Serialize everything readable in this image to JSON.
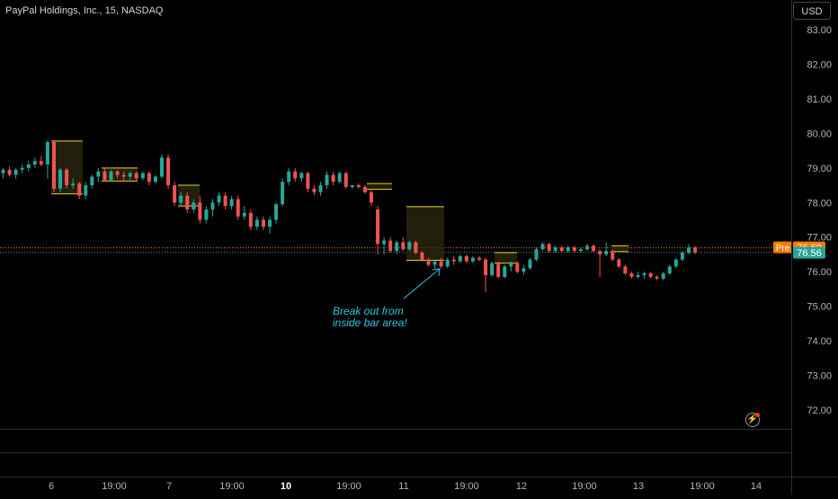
{
  "header": {
    "symbol_title": "PayPal Holdings, Inc., 15, NASDAQ",
    "currency_button": "USD"
  },
  "price_badges": {
    "pre_label": "Pre",
    "pre_value": "76.69",
    "last_value": "76.56"
  },
  "annotation": {
    "line1": "Break out from",
    "line2": "inside bar area!"
  },
  "colors": {
    "up": "#26a69a",
    "down": "#ef5350",
    "box_border": "#f0d020",
    "box_fill": "#2d2a10",
    "annotation": "#2ec5e0",
    "pre_badge": "#f57c00",
    "last_badge": "#26a69a",
    "grid_text": "#b2b5be"
  },
  "chart_data": {
    "type": "candlestick",
    "y_axis": {
      "ticks": [
        "83.00",
        "82.00",
        "81.00",
        "80.00",
        "79.00",
        "78.00",
        "77.00",
        "76.00",
        "75.00",
        "74.00",
        "73.00",
        "72.00"
      ],
      "ylim": [
        71.5,
        83.5
      ],
      "side": "right"
    },
    "x_axis": {
      "ticks": [
        {
          "label": "6",
          "i": 0,
          "bold": false
        },
        {
          "label": "19:00",
          "i": 1,
          "bold": false
        },
        {
          "label": "7",
          "i": 2,
          "bold": false
        },
        {
          "label": "19:00",
          "i": 3,
          "bold": false
        },
        {
          "label": "10",
          "i": 4,
          "bold": true
        },
        {
          "label": "19:00",
          "i": 5,
          "bold": false
        },
        {
          "label": "11",
          "i": 6,
          "bold": false
        },
        {
          "label": "19:00",
          "i": 7,
          "bold": false
        },
        {
          "label": "12",
          "i": 8,
          "bold": false
        },
        {
          "label": "19:00",
          "i": 9,
          "bold": false
        },
        {
          "label": "13",
          "i": 10,
          "bold": false
        },
        {
          "label": "19:00",
          "i": 11,
          "bold": false
        },
        {
          "label": "14",
          "i": 12,
          "bold": false
        }
      ]
    },
    "reference_lines": [
      {
        "name": "pre-market",
        "value": 76.69
      },
      {
        "name": "last",
        "value": 76.56
      }
    ],
    "inside_bar_boxes": [
      {
        "top": 79.78,
        "bottom": 78.25
      },
      {
        "top": 79.0,
        "bottom": 78.62
      },
      {
        "top": 78.5,
        "bottom": 77.9
      },
      {
        "top": 78.55,
        "bottom": 78.38
      },
      {
        "top": 77.88,
        "bottom": 76.33
      },
      {
        "top": 76.55,
        "bottom": 76.25
      },
      {
        "top": 76.75,
        "bottom": 76.58
      }
    ],
    "ohlc": [
      [
        78.85,
        79.0,
        78.7,
        78.95
      ],
      [
        78.95,
        79.05,
        78.75,
        78.8
      ],
      [
        78.8,
        79.0,
        78.7,
        78.95
      ],
      [
        78.95,
        79.1,
        78.85,
        79.0
      ],
      [
        79.0,
        79.2,
        78.9,
        79.1
      ],
      [
        79.1,
        79.3,
        79.0,
        79.2
      ],
      [
        79.2,
        79.35,
        79.05,
        79.1
      ],
      [
        79.1,
        79.8,
        78.7,
        79.75
      ],
      [
        79.75,
        79.8,
        78.3,
        78.4
      ],
      [
        78.4,
        79.0,
        78.3,
        78.95
      ],
      [
        78.95,
        79.0,
        78.4,
        78.5
      ],
      [
        78.5,
        78.7,
        78.4,
        78.55
      ],
      [
        78.55,
        78.6,
        78.1,
        78.2
      ],
      [
        78.2,
        78.6,
        78.1,
        78.5
      ],
      [
        78.5,
        78.8,
        78.4,
        78.75
      ],
      [
        78.75,
        79.0,
        78.6,
        78.9
      ],
      [
        78.9,
        79.0,
        78.6,
        78.65
      ],
      [
        78.65,
        78.95,
        78.6,
        78.9
      ],
      [
        78.9,
        78.95,
        78.7,
        78.8
      ],
      [
        78.8,
        78.9,
        78.6,
        78.75
      ],
      [
        78.75,
        78.9,
        78.65,
        78.85
      ],
      [
        78.85,
        78.9,
        78.6,
        78.7
      ],
      [
        78.7,
        78.9,
        78.65,
        78.85
      ],
      [
        78.85,
        78.9,
        78.5,
        78.6
      ],
      [
        78.6,
        78.8,
        78.55,
        78.75
      ],
      [
        78.75,
        79.4,
        78.7,
        79.3
      ],
      [
        79.3,
        79.4,
        78.4,
        78.5
      ],
      [
        78.5,
        78.6,
        77.9,
        78.0
      ],
      [
        78.0,
        78.3,
        77.9,
        78.2
      ],
      [
        78.2,
        78.3,
        77.7,
        77.8
      ],
      [
        77.8,
        78.1,
        77.7,
        78.0
      ],
      [
        78.0,
        78.2,
        77.4,
        77.5
      ],
      [
        77.5,
        77.9,
        77.4,
        77.8
      ],
      [
        77.8,
        78.1,
        77.6,
        78.0
      ],
      [
        78.0,
        78.3,
        77.9,
        78.2
      ],
      [
        78.2,
        78.3,
        77.8,
        77.9
      ],
      [
        77.9,
        78.2,
        77.8,
        78.1
      ],
      [
        78.1,
        78.2,
        77.5,
        77.6
      ],
      [
        77.6,
        77.9,
        77.5,
        77.7
      ],
      [
        77.7,
        77.8,
        77.2,
        77.3
      ],
      [
        77.3,
        77.6,
        77.2,
        77.5
      ],
      [
        77.5,
        77.6,
        77.2,
        77.3
      ],
      [
        77.3,
        77.6,
        77.1,
        77.5
      ],
      [
        77.5,
        78.0,
        77.4,
        77.95
      ],
      [
        77.95,
        78.7,
        77.9,
        78.6
      ],
      [
        78.6,
        79.0,
        78.5,
        78.9
      ],
      [
        78.9,
        79.0,
        78.6,
        78.7
      ],
      [
        78.7,
        78.9,
        78.6,
        78.85
      ],
      [
        78.85,
        78.9,
        78.3,
        78.4
      ],
      [
        78.4,
        78.5,
        78.2,
        78.3
      ],
      [
        78.3,
        78.6,
        78.2,
        78.5
      ],
      [
        78.5,
        78.9,
        78.4,
        78.8
      ],
      [
        78.8,
        78.9,
        78.5,
        78.6
      ],
      [
        78.6,
        78.9,
        78.55,
        78.85
      ],
      [
        78.85,
        78.9,
        78.4,
        78.45
      ],
      [
        78.45,
        78.5,
        78.4,
        78.5
      ],
      [
        78.5,
        78.55,
        78.4,
        78.45
      ],
      [
        78.45,
        78.5,
        78.25,
        78.3
      ],
      [
        78.3,
        78.35,
        77.9,
        78.0
      ],
      [
        77.8,
        77.9,
        76.5,
        76.8
      ],
      [
        76.8,
        77.0,
        76.5,
        76.9
      ],
      [
        76.9,
        77.0,
        76.55,
        76.6
      ],
      [
        76.6,
        76.9,
        76.5,
        76.85
      ],
      [
        76.85,
        77.0,
        76.6,
        76.65
      ],
      [
        76.65,
        76.9,
        76.6,
        76.85
      ],
      [
        76.85,
        76.9,
        76.5,
        76.55
      ],
      [
        76.55,
        76.6,
        76.3,
        76.35
      ],
      [
        76.35,
        76.4,
        76.15,
        76.2
      ],
      [
        76.2,
        76.35,
        76.1,
        76.3
      ],
      [
        76.3,
        76.4,
        76.1,
        76.15
      ],
      [
        76.15,
        76.4,
        76.1,
        76.35
      ],
      [
        76.35,
        76.45,
        76.2,
        76.3
      ],
      [
        76.3,
        76.5,
        76.25,
        76.45
      ],
      [
        76.45,
        76.5,
        76.25,
        76.3
      ],
      [
        76.3,
        76.45,
        76.25,
        76.4
      ],
      [
        76.4,
        76.45,
        76.3,
        76.35
      ],
      [
        76.35,
        76.4,
        75.4,
        75.9
      ],
      [
        75.9,
        76.3,
        75.85,
        76.25
      ],
      [
        76.25,
        76.3,
        75.8,
        75.85
      ],
      [
        75.85,
        76.2,
        75.8,
        76.15
      ],
      [
        76.15,
        76.3,
        76.0,
        76.25
      ],
      [
        76.25,
        76.3,
        75.95,
        76.0
      ],
      [
        76.0,
        76.2,
        75.9,
        76.1
      ],
      [
        76.1,
        76.4,
        76.05,
        76.35
      ],
      [
        76.35,
        76.7,
        76.3,
        76.65
      ],
      [
        76.65,
        76.85,
        76.6,
        76.8
      ],
      [
        76.8,
        76.85,
        76.55,
        76.6
      ],
      [
        76.6,
        76.75,
        76.55,
        76.7
      ],
      [
        76.7,
        76.75,
        76.55,
        76.6
      ],
      [
        76.6,
        76.75,
        76.55,
        76.7
      ],
      [
        76.7,
        76.75,
        76.55,
        76.6
      ],
      [
        76.6,
        76.7,
        76.55,
        76.65
      ],
      [
        76.65,
        76.8,
        76.6,
        76.75
      ],
      [
        76.75,
        76.8,
        76.55,
        76.6
      ],
      [
        76.6,
        76.65,
        75.85,
        76.5
      ],
      [
        76.5,
        76.85,
        76.45,
        76.6
      ],
      [
        76.6,
        76.65,
        76.3,
        76.35
      ],
      [
        76.35,
        76.4,
        76.1,
        76.15
      ],
      [
        76.15,
        76.2,
        75.9,
        75.95
      ],
      [
        75.95,
        76.0,
        75.8,
        75.85
      ],
      [
        75.85,
        76.0,
        75.8,
        75.9
      ],
      [
        75.9,
        76.0,
        75.8,
        75.95
      ],
      [
        75.95,
        76.0,
        75.8,
        75.85
      ],
      [
        75.85,
        75.9,
        75.75,
        75.8
      ],
      [
        75.8,
        76.0,
        75.75,
        75.95
      ],
      [
        75.95,
        76.2,
        75.9,
        76.15
      ],
      [
        76.15,
        76.4,
        76.1,
        76.35
      ],
      [
        76.35,
        76.6,
        76.3,
        76.55
      ],
      [
        76.55,
        76.8,
        76.5,
        76.7
      ],
      [
        76.7,
        76.75,
        76.5,
        76.56
      ]
    ]
  }
}
